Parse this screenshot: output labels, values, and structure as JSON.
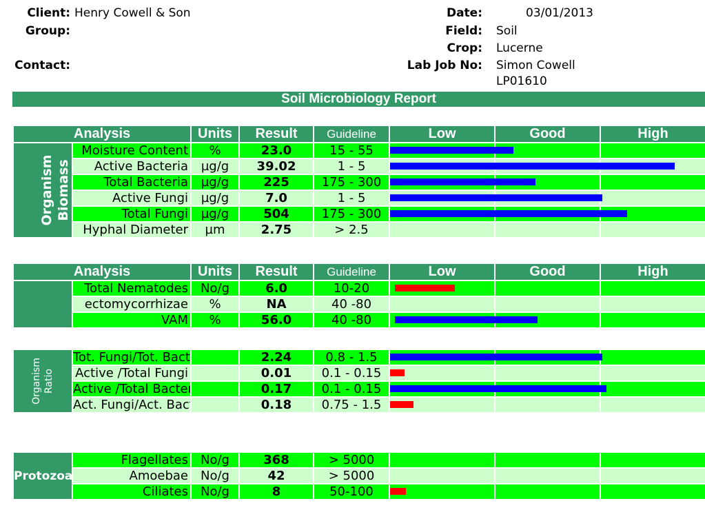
{
  "header": {
    "client_label": "Client:",
    "client": "Henry Cowell & Son",
    "group_label": "Group:",
    "group": "",
    "contact_label": "Contact:",
    "contact": "",
    "date_label": "Date:",
    "date": "03/01/2013",
    "field_label": "Field:",
    "field": "Soil",
    "crop_label": "Crop:",
    "crop": "Lucerne",
    "lab_label": "Lab Job No:",
    "lab_line1": "Simon Cowell",
    "lab_line2": "LP01610"
  },
  "title": "Soil Microbiology Report",
  "columns": {
    "analysis": "Analysis",
    "units": "Units",
    "result": "Result",
    "guideline": "Guideline",
    "low": "Low",
    "good": "Good",
    "high": "High"
  },
  "colors": {
    "green_dark": "#339966",
    "green_bright": "#00ff00",
    "green_light": "#ccffcc",
    "bar_blue": "#0000ff",
    "bar_red": "#ff0000"
  },
  "chart_data": {
    "type": "bar",
    "scale_note": "Bars are drawn relative to guideline bands Low / Good / High; bar value = fraction of the Low-Good-High scale width",
    "sections": [
      {
        "group": "Organism Biomass",
        "show_header": true,
        "rows": [
          {
            "analysis": "Moisture Content",
            "units": "%",
            "result": "23.0",
            "guideline": "15 - 55",
            "bar": 0.39,
            "color": "blue"
          },
          {
            "analysis": "Active Bacteria",
            "units": "µg/g",
            "result": "39.02",
            "guideline": "1 - 5",
            "bar": 0.9,
            "color": "blue"
          },
          {
            "analysis": "Total Bacteria",
            "units": "µg/g",
            "result": "225",
            "guideline": "175 - 300",
            "bar": 0.46,
            "color": "blue"
          },
          {
            "analysis": "Active Fungi",
            "units": "µg/g",
            "result": "7.0",
            "guideline": "1 - 5",
            "bar": 0.67,
            "color": "blue"
          },
          {
            "analysis": "Total Fungi",
            "units": "µg/g",
            "result": "504",
            "guideline": "175 - 300",
            "bar": 0.75,
            "color": "blue"
          },
          {
            "analysis": "Hyphal Diameter",
            "units": "µm",
            "result": "2.75",
            "guideline": "> 2.5",
            "bar": 0,
            "color": "blue"
          }
        ]
      },
      {
        "group": "",
        "show_header": true,
        "rows": [
          {
            "analysis": "Total Nematodes",
            "units": "No/g",
            "result": "6.0",
            "guideline": "10-20",
            "bar": 0.19,
            "color": "red",
            "offset": 0.015
          },
          {
            "analysis": "ectomycorrhizae",
            "units": "%",
            "result": "NA",
            "guideline": "40 -80",
            "bar": 0,
            "color": "blue"
          },
          {
            "analysis": "VAM",
            "units": "%",
            "result": "56.0",
            "guideline": "40 -80",
            "bar": 0.45,
            "color": "blue",
            "offset": 0.015
          }
        ]
      },
      {
        "group": "Organism Ratio",
        "show_header": false,
        "rows": [
          {
            "analysis": "Tot. Fungi/Tot. Bacteria",
            "units": "",
            "result": "2.24",
            "guideline": "0.8 - 1.5",
            "bar": 0.67,
            "color": "blue"
          },
          {
            "analysis": "Active /Total Fungi",
            "units": "",
            "result": "0.01",
            "guideline": "0.1 - 0.15",
            "bar": 0.045,
            "color": "red"
          },
          {
            "analysis": "Active /Total Bacteria",
            "units": "",
            "result": "0.17",
            "guideline": "0.1 - 0.15",
            "bar": 0.685,
            "color": "blue"
          },
          {
            "analysis": "Act. Fungi/Act. Bacteria",
            "units": "",
            "result": "0.18",
            "guideline": "0.75 - 1.5",
            "bar": 0.075,
            "color": "red"
          }
        ]
      },
      {
        "group": "Protozoa",
        "show_header": false,
        "rows": [
          {
            "analysis": "Flagellates",
            "units": "No/g",
            "result": "368",
            "guideline": "> 5000",
            "bar": 0,
            "color": "blue"
          },
          {
            "analysis": "Amoebae",
            "units": "No/g",
            "result": "42",
            "guideline": "> 5000",
            "bar": 0,
            "color": "blue"
          },
          {
            "analysis": "Ciliates",
            "units": "No/g",
            "result": "8",
            "guideline": "50-100",
            "bar": 0.05,
            "color": "red"
          }
        ]
      }
    ]
  }
}
